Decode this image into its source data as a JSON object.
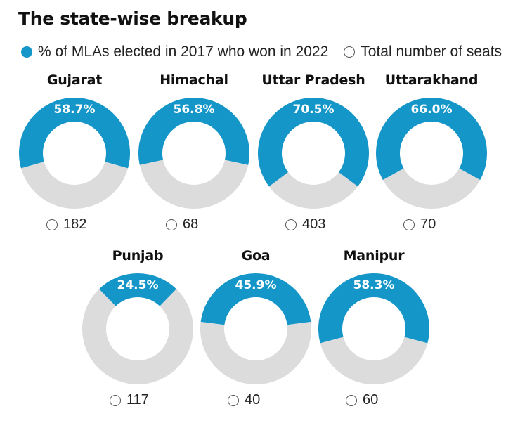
{
  "title": "The state-wise breakup",
  "legend": {
    "items": [
      {
        "label": "% of MLAs elected in 2017 who won in 2022",
        "color": "#1596c8",
        "style": "filled"
      },
      {
        "label": "Total number of seats",
        "color": "#d9d9d9",
        "style": "hollow"
      }
    ]
  },
  "colors": {
    "share": "#1596c8",
    "remainder": "#dcdcdc"
  },
  "chart_data": {
    "type": "pie",
    "variant": "donut",
    "title": "The state-wise breakup",
    "series_names": [
      "% of MLAs elected in 2017 who won in 2022",
      "Total number of seats"
    ],
    "states": [
      {
        "name": "Gujarat",
        "percent": 58.7,
        "percent_label": "58.7%",
        "seats": 182,
        "seats_label": "182"
      },
      {
        "name": "Himachal",
        "percent": 56.8,
        "percent_label": "56.8%",
        "seats": 68,
        "seats_label": "68"
      },
      {
        "name": "Uttar Pradesh",
        "percent": 70.5,
        "percent_label": "70.5%",
        "seats": 403,
        "seats_label": "403"
      },
      {
        "name": "Uttarakhand",
        "percent": 66.0,
        "percent_label": "66.0%",
        "seats": 70,
        "seats_label": "70"
      },
      {
        "name": "Punjab",
        "percent": 24.5,
        "percent_label": "24.5%",
        "seats": 117,
        "seats_label": "117"
      },
      {
        "name": "Goa",
        "percent": 45.9,
        "percent_label": "45.9%",
        "seats": 40,
        "seats_label": "40"
      },
      {
        "name": "Manipur",
        "percent": 58.3,
        "percent_label": "58.3%",
        "seats": 60,
        "seats_label": "60"
      }
    ]
  }
}
